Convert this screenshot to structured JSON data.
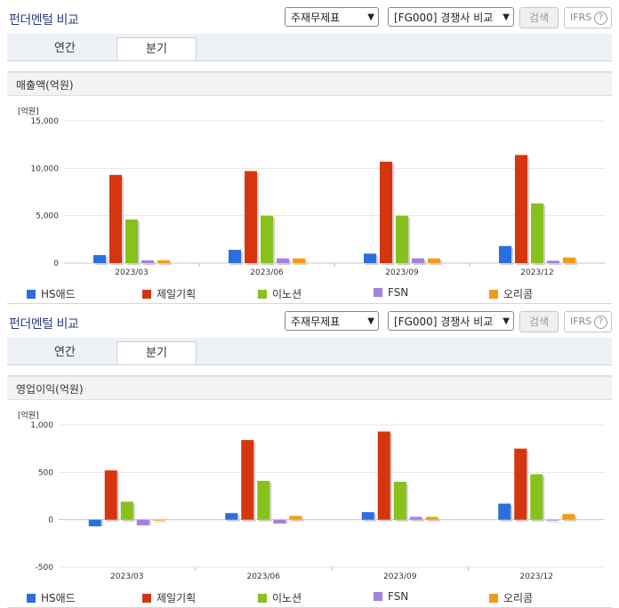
{
  "panels": [
    {
      "title": "펀더멘털 비교",
      "select1": "주재무제표",
      "select2": "[FG000] 경쟁사 비교",
      "search_label": "검색",
      "ifrs_label": "IFRS",
      "tabs": [
        "연간",
        "분기"
      ],
      "active_tab": "분기",
      "subtitle": "매출액(억원)",
      "unit": "[억원]"
    },
    {
      "title": "펀더멘털 비교",
      "select1": "주재무제표",
      "select2": "[FG000] 경쟁사 비교",
      "search_label": "검색",
      "ifrs_label": "IFRS",
      "tabs": [
        "연간",
        "분기"
      ],
      "active_tab": "분기",
      "subtitle": "영업이익(억원)",
      "unit": "[억원]"
    }
  ],
  "chart_data": [
    {
      "type": "bar",
      "title": "매출액(억원)",
      "categories": [
        "2023/03",
        "2023/06",
        "2023/09",
        "2023/12"
      ],
      "ylim": [
        0,
        15000
      ],
      "yticks": [
        0,
        5000,
        10000,
        15000
      ],
      "ytick_labels": [
        "0",
        "5,000",
        "10,000",
        "15,000"
      ],
      "series": [
        {
          "name": "HS애드",
          "color": "#2b6fde",
          "values": [
            850,
            1400,
            1000,
            1800
          ]
        },
        {
          "name": "제일기획",
          "color": "#d6360f",
          "values": [
            9300,
            9700,
            10700,
            11400
          ]
        },
        {
          "name": "이노션",
          "color": "#86c21b",
          "values": [
            4600,
            5000,
            5000,
            6300
          ]
        },
        {
          "name": "FSN",
          "color": "#a57fe0",
          "values": [
            300,
            500,
            500,
            250
          ]
        },
        {
          "name": "오리콤",
          "color": "#f39c12",
          "values": [
            300,
            500,
            500,
            600
          ]
        }
      ]
    },
    {
      "type": "bar",
      "title": "영업이익(억원)",
      "categories": [
        "2023/03",
        "2023/06",
        "2023/09",
        "2023/12"
      ],
      "ylim": [
        -500,
        1000
      ],
      "yticks": [
        -500,
        0,
        500,
        1000
      ],
      "ytick_labels": [
        "-500",
        "0",
        "500",
        "1,000"
      ],
      "series": [
        {
          "name": "HS애드",
          "color": "#2b6fde",
          "values": [
            -70,
            70,
            80,
            170
          ]
        },
        {
          "name": "제일기획",
          "color": "#d6360f",
          "values": [
            520,
            840,
            930,
            750
          ]
        },
        {
          "name": "이노션",
          "color": "#86c21b",
          "values": [
            190,
            410,
            400,
            480
          ]
        },
        {
          "name": "FSN",
          "color": "#a57fe0",
          "values": [
            -60,
            -40,
            30,
            0
          ]
        },
        {
          "name": "오리콤",
          "color": "#f39c12",
          "values": [
            0,
            40,
            30,
            60
          ]
        }
      ]
    }
  ]
}
